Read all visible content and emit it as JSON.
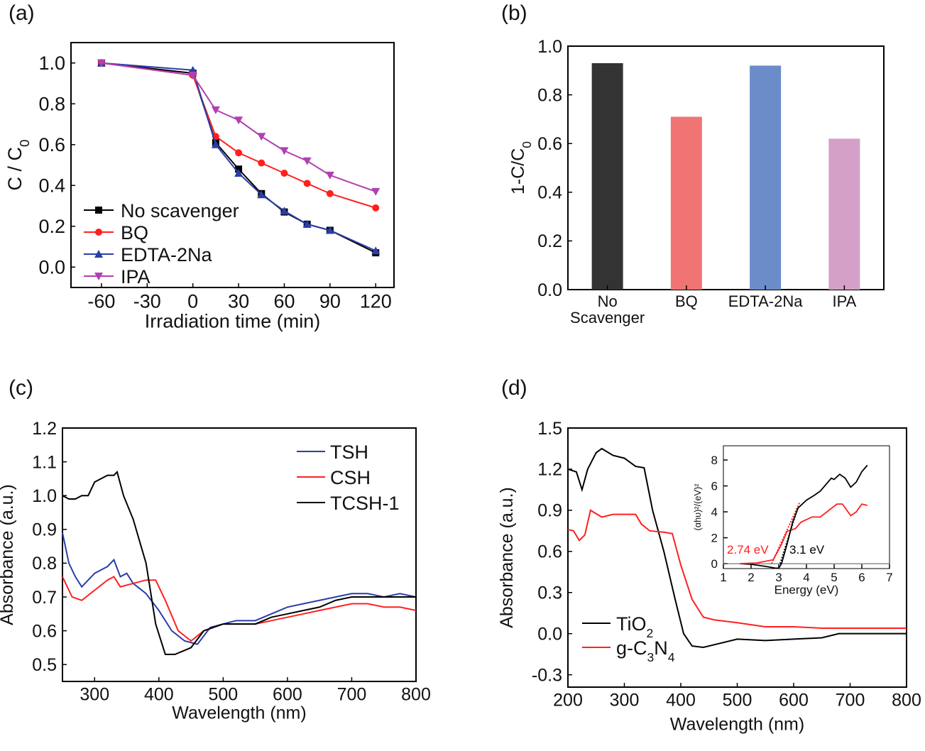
{
  "panel_labels": [
    "(a)",
    "(b)",
    "(c)",
    "(d)"
  ],
  "chart_data": [
    {
      "id": "a",
      "type": "line",
      "xlabel": "Irradiation time (min)",
      "ylabel": "C / C0",
      "xlim": [
        -80,
        132
      ],
      "ylim": [
        -0.1,
        1.1
      ],
      "xticks": [
        -60,
        -30,
        0,
        30,
        60,
        90,
        120
      ],
      "yticks": [
        0.0,
        0.2,
        0.4,
        0.6,
        0.8,
        1.0
      ],
      "ytick_format": 1,
      "legend": "bottom-left",
      "x": [
        -60,
        0,
        15,
        30,
        45,
        60,
        75,
        90,
        120
      ],
      "series": [
        {
          "name": "No scavenger",
          "color": "#000000",
          "marker": "square",
          "values": [
            1.0,
            0.95,
            0.61,
            0.48,
            0.36,
            0.27,
            0.21,
            0.18,
            0.07
          ]
        },
        {
          "name": "BQ",
          "color": "#ff2020",
          "marker": "circle",
          "values": [
            1.0,
            0.94,
            0.64,
            0.56,
            0.51,
            0.46,
            0.41,
            0.36,
            0.29
          ]
        },
        {
          "name": "EDTA-2Na",
          "color": "#2a3ea8",
          "marker": "triangle-up",
          "values": [
            1.0,
            0.965,
            0.6,
            0.46,
            0.355,
            0.275,
            0.21,
            0.18,
            0.08
          ]
        },
        {
          "name": "IPA",
          "color": "#b040b0",
          "marker": "triangle-down",
          "values": [
            1.0,
            0.94,
            0.77,
            0.72,
            0.64,
            0.57,
            0.52,
            0.45,
            0.37
          ]
        }
      ]
    },
    {
      "id": "b",
      "type": "bar",
      "ylabel": "1-C/C0",
      "ylim": [
        0,
        1.0
      ],
      "yticks": [
        0.0,
        0.2,
        0.4,
        0.6,
        0.8,
        1.0
      ],
      "ytick_format": 1,
      "categories": [
        "No Scavenger",
        "BQ",
        "EDTA-2Na",
        "IPA"
      ],
      "values": [
        0.93,
        0.71,
        0.92,
        0.62
      ],
      "colors": [
        "#333333",
        "#f07474",
        "#6b8cc8",
        "#d4a0c8"
      ]
    },
    {
      "id": "c",
      "type": "line",
      "xlabel": "Wavelength (nm)",
      "ylabel": "Absorbance (a.u.)",
      "xlim": [
        250,
        800
      ],
      "ylim": [
        0.45,
        1.2
      ],
      "xticks": [
        300,
        400,
        500,
        600,
        700,
        800
      ],
      "yticks": [
        0.5,
        0.6,
        0.7,
        0.8,
        0.9,
        1.0,
        1.1,
        1.2
      ],
      "ytick_format": 1,
      "legend": "top-right",
      "series": [
        {
          "name": "TSH",
          "color": "#2a3ea8",
          "points": [
            [
              250,
              0.89
            ],
            [
              260,
              0.8
            ],
            [
              270,
              0.76
            ],
            [
              280,
              0.73
            ],
            [
              290,
              0.75
            ],
            [
              300,
              0.77
            ],
            [
              310,
              0.78
            ],
            [
              320,
              0.79
            ],
            [
              330,
              0.81
            ],
            [
              340,
              0.76
            ],
            [
              350,
              0.77
            ],
            [
              360,
              0.74
            ],
            [
              380,
              0.71
            ],
            [
              400,
              0.66
            ],
            [
              420,
              0.6
            ],
            [
              440,
              0.57
            ],
            [
              460,
              0.56
            ],
            [
              480,
              0.61
            ],
            [
              500,
              0.62
            ],
            [
              520,
              0.63
            ],
            [
              550,
              0.63
            ],
            [
              575,
              0.65
            ],
            [
              600,
              0.67
            ],
            [
              625,
              0.68
            ],
            [
              650,
              0.69
            ],
            [
              675,
              0.7
            ],
            [
              700,
              0.71
            ],
            [
              725,
              0.71
            ],
            [
              750,
              0.7
            ],
            [
              775,
              0.71
            ],
            [
              800,
              0.7
            ]
          ]
        },
        {
          "name": "CSH",
          "color": "#ff2020",
          "points": [
            [
              250,
              0.76
            ],
            [
              265,
              0.7
            ],
            [
              280,
              0.69
            ],
            [
              300,
              0.72
            ],
            [
              320,
              0.75
            ],
            [
              330,
              0.76
            ],
            [
              340,
              0.73
            ],
            [
              360,
              0.74
            ],
            [
              380,
              0.75
            ],
            [
              395,
              0.75
            ],
            [
              410,
              0.69
            ],
            [
              430,
              0.6
            ],
            [
              450,
              0.57
            ],
            [
              470,
              0.6
            ],
            [
              500,
              0.62
            ],
            [
              525,
              0.62
            ],
            [
              550,
              0.62
            ],
            [
              575,
              0.63
            ],
            [
              600,
              0.64
            ],
            [
              625,
              0.65
            ],
            [
              650,
              0.66
            ],
            [
              675,
              0.67
            ],
            [
              700,
              0.68
            ],
            [
              725,
              0.68
            ],
            [
              750,
              0.67
            ],
            [
              775,
              0.67
            ],
            [
              800,
              0.66
            ]
          ]
        },
        {
          "name": "TCSH-1",
          "color": "#000000",
          "points": [
            [
              250,
              1.0
            ],
            [
              260,
              0.99
            ],
            [
              270,
              0.99
            ],
            [
              280,
              1.0
            ],
            [
              290,
              1.0
            ],
            [
              300,
              1.04
            ],
            [
              310,
              1.05
            ],
            [
              320,
              1.06
            ],
            [
              330,
              1.06
            ],
            [
              335,
              1.07
            ],
            [
              345,
              1.0
            ],
            [
              360,
              0.93
            ],
            [
              380,
              0.8
            ],
            [
              395,
              0.62
            ],
            [
              410,
              0.53
            ],
            [
              425,
              0.53
            ],
            [
              450,
              0.55
            ],
            [
              470,
              0.6
            ],
            [
              500,
              0.62
            ],
            [
              525,
              0.62
            ],
            [
              550,
              0.62
            ],
            [
              575,
              0.64
            ],
            [
              600,
              0.65
            ],
            [
              625,
              0.66
            ],
            [
              650,
              0.67
            ],
            [
              675,
              0.69
            ],
            [
              700,
              0.7
            ],
            [
              725,
              0.7
            ],
            [
              750,
              0.7
            ],
            [
              775,
              0.7
            ],
            [
              800,
              0.7
            ]
          ]
        }
      ]
    },
    {
      "id": "d",
      "type": "line",
      "xlabel": "Wavelength (nm)",
      "ylabel": "Absorbance (a.u.)",
      "xlim": [
        200,
        800
      ],
      "ylim": [
        -0.39,
        1.5
      ],
      "xticks": [
        200,
        300,
        400,
        500,
        600,
        700,
        800
      ],
      "yticks": [
        -0.3,
        0.0,
        0.3,
        0.6,
        0.9,
        1.2,
        1.5
      ],
      "ytick_format": 1,
      "legend": "bottom-left",
      "series": [
        {
          "name": "TiO2",
          "color": "#000000",
          "points": [
            [
              200,
              1.2
            ],
            [
              215,
              1.18
            ],
            [
              225,
              1.05
            ],
            [
              235,
              1.2
            ],
            [
              250,
              1.32
            ],
            [
              260,
              1.35
            ],
            [
              280,
              1.3
            ],
            [
              300,
              1.28
            ],
            [
              320,
              1.22
            ],
            [
              335,
              1.21
            ],
            [
              350,
              0.9
            ],
            [
              370,
              0.6
            ],
            [
              390,
              0.25
            ],
            [
              405,
              0.0
            ],
            [
              420,
              -0.09
            ],
            [
              440,
              -0.1
            ],
            [
              470,
              -0.07
            ],
            [
              500,
              -0.04
            ],
            [
              550,
              -0.05
            ],
            [
              600,
              -0.04
            ],
            [
              650,
              -0.03
            ],
            [
              680,
              0.0
            ],
            [
              800,
              0.0
            ]
          ]
        },
        {
          "name": "g-C3N4",
          "color": "#ff2020",
          "points": [
            [
              200,
              0.76
            ],
            [
              210,
              0.75
            ],
            [
              220,
              0.68
            ],
            [
              230,
              0.72
            ],
            [
              240,
              0.9
            ],
            [
              260,
              0.85
            ],
            [
              280,
              0.87
            ],
            [
              300,
              0.87
            ],
            [
              320,
              0.87
            ],
            [
              330,
              0.8
            ],
            [
              345,
              0.75
            ],
            [
              370,
              0.74
            ],
            [
              385,
              0.73
            ],
            [
              400,
              0.5
            ],
            [
              420,
              0.25
            ],
            [
              440,
              0.12
            ],
            [
              460,
              0.1
            ],
            [
              500,
              0.08
            ],
            [
              550,
              0.05
            ],
            [
              600,
              0.05
            ],
            [
              650,
              0.04
            ],
            [
              680,
              0.04
            ],
            [
              800,
              0.04
            ]
          ]
        }
      ],
      "inset": {
        "type": "line",
        "xlabel": "Energy (eV)",
        "ylabel": "(αhυ)²/(eV)²",
        "xlim": [
          1,
          7
        ],
        "ylim": [
          -0.38,
          9.1
        ],
        "xticks": [
          1,
          2,
          3,
          4,
          5,
          6,
          7
        ],
        "yticks": [
          0,
          2,
          4,
          6,
          8
        ],
        "ytick_format": 0,
        "annotations": [
          {
            "text": "2.74 eV",
            "color": "#ff2020"
          },
          {
            "text": "3.1 eV",
            "color": "#000000"
          }
        ],
        "series": [
          {
            "color": "#000000",
            "points": [
              [
                1.6,
                0
              ],
              [
                2.0,
                -0.05
              ],
              [
                2.5,
                -0.2
              ],
              [
                2.9,
                -0.35
              ],
              [
                3.0,
                -0.35
              ],
              [
                3.1,
                0
              ],
              [
                3.3,
                1.5
              ],
              [
                3.5,
                3.2
              ],
              [
                3.7,
                4.3
              ],
              [
                4.0,
                4.9
              ],
              [
                4.3,
                5.3
              ],
              [
                4.5,
                5.6
              ],
              [
                4.9,
                6.6
              ],
              [
                5.0,
                6.5
              ],
              [
                5.2,
                6.9
              ],
              [
                5.4,
                6.6
              ],
              [
                5.6,
                5.9
              ],
              [
                5.8,
                6.3
              ],
              [
                6.0,
                7.1
              ],
              [
                6.2,
                7.6
              ]
            ]
          },
          {
            "color": "#ff2020",
            "points": [
              [
                1.6,
                0
              ],
              [
                2.2,
                0.05
              ],
              [
                2.8,
                0.3
              ],
              [
                3.1,
                1.5
              ],
              [
                3.3,
                2.5
              ],
              [
                3.6,
                2.7
              ],
              [
                3.8,
                3.2
              ],
              [
                4.2,
                3.6
              ],
              [
                4.5,
                3.6
              ],
              [
                4.8,
                4.1
              ],
              [
                5.1,
                4.6
              ],
              [
                5.3,
                4.6
              ],
              [
                5.6,
                3.7
              ],
              [
                5.8,
                4.0
              ],
              [
                6.0,
                4.6
              ],
              [
                6.2,
                4.5
              ]
            ]
          }
        ],
        "fits": [
          {
            "color": "#ff2020",
            "points": [
              [
                2.74,
                0
              ],
              [
                3.75,
                4.7
              ]
            ]
          },
          {
            "color": "#000000",
            "points": [
              [
                3.05,
                0
              ],
              [
                3.7,
                4.4
              ]
            ]
          }
        ]
      }
    }
  ]
}
